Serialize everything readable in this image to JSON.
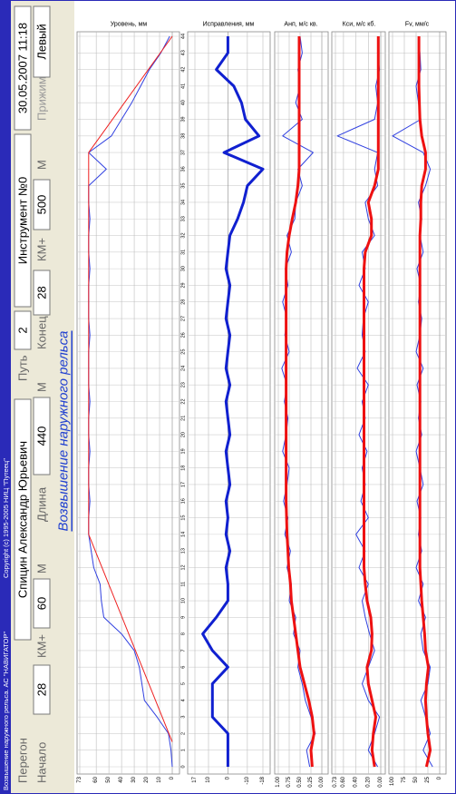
{
  "header": {
    "caption": "Возвышение наружного рельса. АС \"НАВИГАТОР\"",
    "copyright": "Copyright (c) 1995-2005 НИЦ \"Путеец\"",
    "banner": "Возвышение наружного рельса",
    "info": {
      "stretch_label": "Перегон",
      "stretch": "Спицин Александр Юрьевич",
      "track_label": "Путь",
      "track": "2",
      "instrument": "Инструмент №0",
      "datetime": "30.05.2007 11:18",
      "start_label": "Начало",
      "start_km": "28",
      "km_label_1": "КМ+",
      "start_m": "60",
      "m_label_1": "М",
      "length_label": "Длина",
      "length": "440",
      "m_label_2": "М",
      "end_label": "Конец",
      "end_km": "28",
      "km_label_2": "КМ+",
      "end_m": "500",
      "m_label_3": "М",
      "press_label": "Прижим",
      "press": "Левый"
    }
  },
  "chart_data": [
    {
      "type": "line",
      "title": "Уровень, мм",
      "xlim": [
        0,
        44
      ],
      "xticks": [
        0,
        1,
        2,
        3,
        4,
        5,
        6,
        7,
        8,
        9,
        10,
        11,
        12,
        13,
        14,
        15,
        16,
        17,
        18,
        19,
        20,
        21,
        22,
        23,
        24,
        25,
        26,
        27,
        28,
        29,
        30,
        31,
        32,
        33,
        34,
        35,
        36,
        37,
        38,
        39,
        40,
        41,
        42,
        43,
        44
      ],
      "x": [
        0,
        1,
        2,
        3,
        4,
        5,
        6,
        7,
        8,
        9,
        10,
        11,
        12,
        13,
        14,
        15,
        16,
        17,
        18,
        19,
        20,
        21,
        22,
        23,
        24,
        25,
        26,
        27,
        28,
        29,
        30,
        31,
        32,
        33,
        34,
        35,
        36,
        37,
        38,
        39,
        40,
        41,
        42,
        43,
        44
      ],
      "ylim": [
        0,
        73
      ],
      "yticks": [
        73,
        60,
        50,
        40,
        30,
        20,
        10,
        0
      ],
      "grid": true,
      "series": [
        {
          "color": "#3040e0",
          "width": 1,
          "values": [
            0,
            1,
            3,
            12,
            22,
            24,
            26,
            30,
            40,
            54,
            56,
            57,
            62,
            64,
            66,
            66,
            65,
            66,
            66,
            65,
            66,
            66,
            65,
            66,
            66,
            66,
            65,
            66,
            66,
            66,
            65,
            66,
            66,
            65,
            66,
            66,
            52,
            66,
            48,
            40,
            32,
            25,
            18,
            9,
            2
          ]
        },
        {
          "color": "#ee2020",
          "width": 1,
          "x": [
            1.5,
            14,
            37,
            44
          ],
          "values": [
            0,
            66,
            66,
            0
          ]
        }
      ]
    },
    {
      "type": "line",
      "title": "Исправления, мм",
      "xlim": [
        0,
        44
      ],
      "x": [
        0,
        1,
        2,
        3,
        4,
        5,
        6,
        7,
        8,
        9,
        10,
        11,
        12,
        13,
        14,
        15,
        16,
        17,
        18,
        19,
        20,
        21,
        22,
        23,
        24,
        25,
        26,
        27,
        28,
        29,
        30,
        31,
        32,
        33,
        34,
        35,
        36,
        37,
        38,
        39,
        40,
        41,
        42,
        43,
        44
      ],
      "ylim": [
        -18,
        17
      ],
      "yticks": [
        17,
        10,
        0,
        -10,
        -18
      ],
      "grid": true,
      "series": [
        {
          "color": "#1020d0",
          "width": 3,
          "values": [
            0,
            0,
            0,
            8,
            8,
            8,
            0,
            8,
            13,
            6,
            0,
            0,
            1,
            -1,
            1,
            0,
            1,
            -1,
            0,
            1,
            -1,
            0,
            1,
            -1,
            1,
            0,
            -1,
            1,
            0,
            -1,
            1,
            0,
            -1,
            -5,
            -8,
            -10,
            -18,
            2,
            -16,
            -9,
            -7,
            -3,
            6,
            0,
            0
          ]
        }
      ]
    },
    {
      "type": "line",
      "title": "Анп, м/с кв.",
      "xlim": [
        0,
        44
      ],
      "x": [
        0,
        1,
        2,
        3,
        4,
        5,
        6,
        7,
        8,
        9,
        10,
        11,
        12,
        13,
        14,
        15,
        16,
        17,
        18,
        19,
        20,
        21,
        22,
        23,
        24,
        25,
        26,
        27,
        28,
        29,
        30,
        31,
        32,
        33,
        34,
        35,
        36,
        37,
        38,
        39,
        40,
        41,
        42,
        43,
        44
      ],
      "ylim": [
        0,
        1
      ],
      "yticks": [
        {
          "value": 1,
          "label": "1.00"
        },
        {
          "value": 0.75,
          "label": "0.75"
        },
        {
          "value": 0.5,
          "label": "0.50"
        },
        {
          "value": 0.25,
          "label": "0.25"
        },
        {
          "value": 0,
          "label": "0.00"
        }
      ],
      "grid": true,
      "series": [
        {
          "color": "#3040e0",
          "width": 1,
          "values": [
            0.28,
            0.35,
            0.15,
            0.25,
            0.38,
            0.45,
            0.55,
            0.5,
            0.65,
            0.6,
            0.75,
            0.7,
            0.8,
            0.72,
            0.85,
            0.78,
            0.88,
            0.8,
            0.75,
            0.9,
            0.82,
            0.78,
            0.86,
            0.8,
            0.92,
            0.75,
            0.85,
            0.8,
            0.9,
            0.78,
            0.84,
            0.7,
            0.8,
            0.62,
            0.6,
            0.45,
            0.55,
            0.2,
            0.9,
            0.45,
            0.6,
            0.5,
            0.55,
            0.45,
            0.5
          ]
        },
        {
          "color": "#ee1111",
          "width": 3,
          "values": [
            0.22,
            0.25,
            0.18,
            0.22,
            0.3,
            0.4,
            0.5,
            0.55,
            0.6,
            0.65,
            0.7,
            0.72,
            0.76,
            0.78,
            0.8,
            0.81,
            0.82,
            0.82,
            0.82,
            0.82,
            0.82,
            0.82,
            0.82,
            0.82,
            0.82,
            0.82,
            0.82,
            0.82,
            0.82,
            0.82,
            0.82,
            0.8,
            0.75,
            0.68,
            0.6,
            0.55,
            0.52,
            0.52,
            0.52,
            0.52,
            0.52,
            0.52,
            0.52,
            0.52,
            0.52
          ]
        }
      ]
    },
    {
      "type": "line",
      "title": "Кси, м/с кб.",
      "xlim": [
        0,
        44
      ],
      "x": [
        0,
        1,
        2,
        3,
        4,
        5,
        6,
        7,
        8,
        9,
        10,
        11,
        12,
        13,
        14,
        15,
        16,
        17,
        18,
        19,
        20,
        21,
        22,
        23,
        24,
        25,
        26,
        27,
        28,
        29,
        30,
        31,
        32,
        33,
        34,
        35,
        36,
        37,
        38,
        39,
        40,
        41,
        42,
        43,
        44
      ],
      "ylim": [
        0,
        0.73
      ],
      "yticks": [
        0.73,
        {
          "value": 0.6,
          "label": "0.60"
        },
        {
          "value": 0.4,
          "label": "0.40"
        },
        {
          "value": 0.2,
          "label": "0.20"
        },
        {
          "value": 0,
          "label": "0.00"
        }
      ],
      "grid": true,
      "series": [
        {
          "color": "#3040e0",
          "width": 1,
          "values": [
            0.05,
            0.2,
            0.1,
            0.02,
            0.2,
            0.3,
            0.2,
            0.1,
            0.18,
            0.25,
            0.3,
            0.2,
            0.35,
            0.25,
            0.4,
            0.2,
            0.32,
            0.25,
            0.3,
            0.22,
            0.35,
            0.25,
            0.3,
            0.2,
            0.38,
            0.25,
            0.3,
            0.28,
            0.2,
            0.35,
            0.25,
            0.3,
            0.1,
            0.2,
            0.25,
            0.05,
            0.1,
            0.05,
            0.7,
            0.1,
            0.05,
            0.08,
            0.02,
            0.05,
            0.04
          ]
        },
        {
          "color": "#ee1111",
          "width": 3,
          "values": [
            0.1,
            0.14,
            0.12,
            0.08,
            0.14,
            0.2,
            0.22,
            0.15,
            0.14,
            0.16,
            0.22,
            0.25,
            0.27,
            0.27,
            0.27,
            0.27,
            0.27,
            0.27,
            0.27,
            0.27,
            0.27,
            0.27,
            0.27,
            0.27,
            0.27,
            0.27,
            0.27,
            0.27,
            0.27,
            0.27,
            0.27,
            0.25,
            0.15,
            0.15,
            0.2,
            0.1,
            0.04,
            0.04,
            0.04,
            0.04,
            0.04,
            0.04,
            0.04,
            0.04,
            0.04
          ]
        }
      ]
    },
    {
      "type": "line",
      "title": "Fv, мм/с",
      "xlim": [
        0,
        44
      ],
      "x": [
        0,
        1,
        2,
        3,
        4,
        5,
        6,
        7,
        8,
        9,
        10,
        11,
        12,
        13,
        14,
        15,
        16,
        17,
        18,
        19,
        20,
        21,
        22,
        23,
        24,
        25,
        26,
        27,
        28,
        29,
        30,
        31,
        32,
        33,
        34,
        35,
        36,
        37,
        38,
        39,
        40,
        41,
        42,
        43,
        44
      ],
      "ylim": [
        0,
        100
      ],
      "yticks": [
        100,
        75,
        50,
        25,
        0
      ],
      "grid": true,
      "series": [
        {
          "color": "#3040e0",
          "width": 1,
          "values": [
            15,
            35,
            20,
            30,
            40,
            25,
            20,
            35,
            40,
            30,
            45,
            35,
            50,
            38,
            45,
            40,
            48,
            35,
            42,
            50,
            38,
            45,
            40,
            48,
            35,
            50,
            42,
            38,
            45,
            40,
            48,
            35,
            42,
            38,
            45,
            30,
            20,
            35,
            100,
            40,
            45,
            50,
            40,
            42,
            45
          ]
        },
        {
          "color": "#ee1111",
          "width": 3,
          "values": [
            28,
            20,
            25,
            28,
            30,
            28,
            24,
            30,
            32,
            35,
            38,
            40,
            42,
            42,
            42,
            42,
            42,
            42,
            42,
            42,
            42,
            42,
            42,
            42,
            42,
            42,
            42,
            42,
            42,
            42,
            42,
            42,
            42,
            40,
            40,
            38,
            30,
            30,
            38,
            42,
            43,
            44,
            44,
            44,
            44
          ]
        }
      ]
    }
  ]
}
